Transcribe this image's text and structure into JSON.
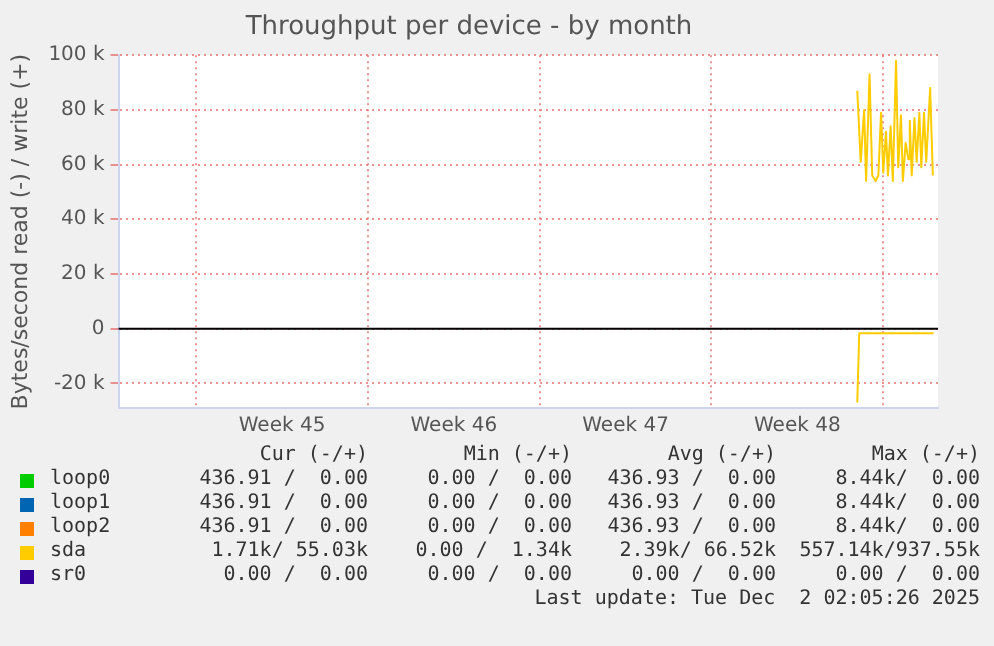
{
  "chart_data": {
    "type": "line",
    "title": "Throughput per device - by month",
    "ylabel": "Bytes/second read (-) / write (+)",
    "xlim": [
      "2025-10-30T20:00",
      "2025-12-03T05:36"
    ],
    "xticks": [
      {
        "value": "2025-11-03",
        "label": null
      },
      {
        "value": "2025-11-06T12:00",
        "label": "Week 45"
      },
      {
        "value": "2025-11-10",
        "label": null
      },
      {
        "value": "2025-11-13T12:00",
        "label": "Week 46"
      },
      {
        "value": "2025-11-17",
        "label": null
      },
      {
        "value": "2025-11-20T12:00",
        "label": "Week 47"
      },
      {
        "value": "2025-11-24",
        "label": null
      },
      {
        "value": "2025-11-27T12:00",
        "label": "Week 48"
      },
      {
        "value": "2025-12-01",
        "label": null
      }
    ],
    "ylim": [
      -29000,
      100000
    ],
    "yticks": [
      {
        "value": -20000,
        "label": "-20 k"
      },
      0,
      {
        "value": 20000,
        "label": "20 k"
      },
      {
        "value": 40000,
        "label": "40 k"
      },
      {
        "value": 60000,
        "label": "60 k"
      },
      {
        "value": 80000,
        "label": "80 k"
      },
      {
        "value": 100000,
        "label": "100 k"
      }
    ],
    "grid": true,
    "legend": "bottom",
    "ref_lines": [
      {
        "axis": "y",
        "value": 0,
        "color": "#000000"
      }
    ],
    "series": [
      {
        "name": "loop0",
        "color": "#00cc00"
      },
      {
        "name": "loop1",
        "color": "#0066b3"
      },
      {
        "name": "loop2",
        "color": "#ff8000"
      },
      {
        "name": "sda",
        "color": "#ffcc00",
        "x": [
          "2025-11-29T22:38",
          "2025-11-30T02:00",
          "2025-11-30T05:21",
          "2025-11-30T07:16",
          "2025-11-30T10:38",
          "2025-11-30T13:16",
          "2025-11-30T16:38",
          "2025-11-30T19:16",
          "2025-11-30T21:55",
          "2025-12-01T00:05",
          "2025-12-01T02:43",
          "2025-12-01T04:38",
          "2025-12-01T07:16",
          "2025-12-01T09:26",
          "2025-12-01T12:34",
          "2025-12-01T14:43",
          "2025-12-01T17:22",
          "2025-12-01T19:16",
          "2025-12-01T21:55",
          "2025-12-02T00:34",
          "2025-12-02T02:00",
          "2025-12-02T03:55",
          "2025-12-02T06:34",
          "2025-12-02T08:43",
          "2025-12-02T11:22",
          "2025-12-02T13:16",
          "2025-12-02T15:55",
          "2025-12-02T18:05",
          "2025-12-02T21:55",
          "2025-12-03T00:34"
        ],
        "values": [
          87000,
          61000,
          80000,
          54000,
          93000,
          56000,
          54000,
          56000,
          79000,
          57000,
          72000,
          56000,
          74000,
          54000,
          98000,
          59000,
          78000,
          54000,
          68000,
          62000,
          76000,
          56000,
          77000,
          61000,
          79000,
          59000,
          79000,
          61000,
          88000,
          56000
        ]
      },
      {
        "color": "#ffcc00",
        "x": [
          "2025-11-29T22:38",
          "2025-11-30T00:34",
          "2025-12-03T01:17"
        ],
        "values": [
          -27000,
          -1700,
          -1700
        ]
      },
      {
        "name": "sr0",
        "color": "#330099"
      }
    ],
    "annotations": [
      "Cur (-/+)",
      "Min (-/+)",
      "Avg (-/+)",
      "Max (-/+)",
      "436.91 /  0.00",
      "0.00 /  0.00",
      "436.93 /  0.00",
      "8.44k/  0.00",
      "436.91 /  0.00",
      "0.00 /  0.00",
      "436.93 /  0.00",
      "8.44k/  0.00",
      "436.91 /  0.00",
      "0.00 /  0.00",
      "436.93 /  0.00",
      "8.44k/  0.00",
      "1.71k/ 55.03k",
      "0.00 /  1.34k",
      "2.39k/ 66.52k",
      "557.14k/937.55k",
      "0.00 /  0.00",
      "0.00 /  0.00",
      "0.00 /  0.00",
      "0.00 /  0.00",
      "Last update: Tue Dec  2 02:05:26 2025"
    ]
  }
}
